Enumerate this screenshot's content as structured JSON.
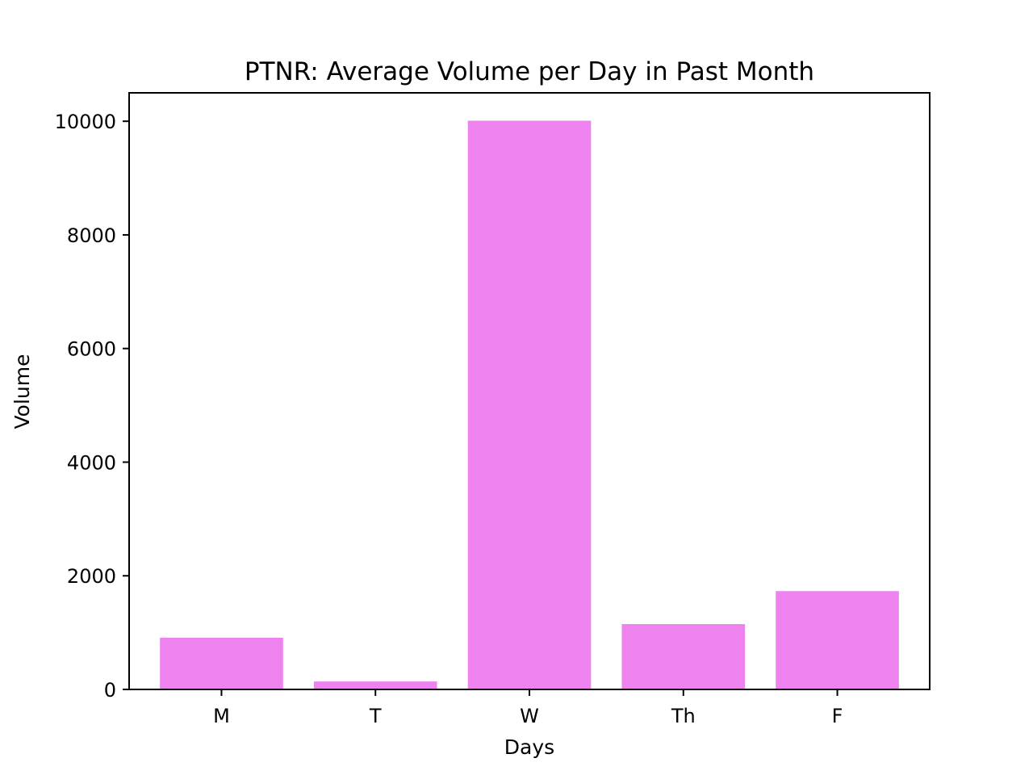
{
  "chart_data": {
    "type": "bar",
    "title": "PTNR: Average Volume per Day in Past Month",
    "xlabel": "Days",
    "ylabel": "Volume",
    "categories": [
      "M",
      "T",
      "W",
      "Th",
      "F"
    ],
    "values": [
      910,
      140,
      10010,
      1150,
      1730
    ],
    "ylim": [
      0,
      10500
    ],
    "yticks": [
      0,
      2000,
      4000,
      6000,
      8000,
      10000
    ],
    "grid": false,
    "legend": "none",
    "bar_color": "#ee82ee"
  }
}
